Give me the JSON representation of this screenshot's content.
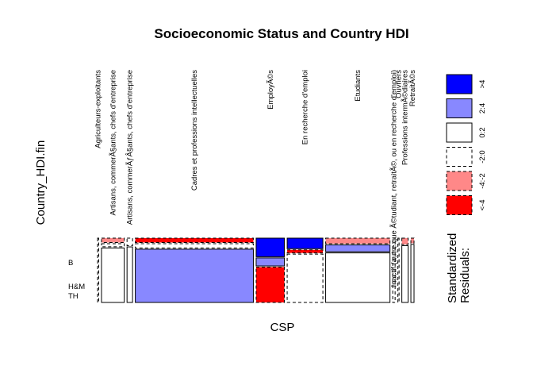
{
  "chart_data": {
    "type": "mosaic",
    "title": "Socioeconomic Status and Country HDI",
    "xlabel": "CSP",
    "ylabel": "Country_HDI.fin",
    "row_levels": [
      "B",
      "H&M",
      "TH"
    ],
    "categories": [
      {
        "label": "Agriculteurs-exploitants",
        "width": 0.003,
        "cells": [
          {
            "fraction": 1.0,
            "fill": "#ffffff",
            "dashed": true
          }
        ]
      },
      {
        "label": "Artisans, commerÃ§ants, chefs d'entreprise",
        "width": 0.058,
        "cells": [
          {
            "fraction": 0.07,
            "fill": "#ff8888",
            "dashed": true
          },
          {
            "fraction": 0.05,
            "fill": "#ffffff",
            "dashed": true
          },
          {
            "fraction": 0.88,
            "fill": "#ffffff",
            "dashed": false
          }
        ]
      },
      {
        "label": "Artisans, commerÃƒÂ§ants, chefs d'entreprise",
        "width": 0.014,
        "cells": [
          {
            "fraction": 0.12,
            "fill": "#ffffff",
            "dashed": true
          },
          {
            "fraction": 0.88,
            "fill": "#ffffff",
            "dashed": false
          }
        ]
      },
      {
        "label": "Cadres et professions intellectuelles",
        "width": 0.301,
        "cells": [
          {
            "fraction": 0.07,
            "fill": "#ff0000",
            "dashed": true
          },
          {
            "fraction": 0.07,
            "fill": "#ffffff",
            "dashed": true
          },
          {
            "fraction": 0.86,
            "fill": "#8888ff",
            "dashed": false
          }
        ]
      },
      {
        "label": "EmployÃ©s",
        "width": 0.072,
        "cells": [
          {
            "fraction": 0.3,
            "fill": "#0000ff",
            "dashed": false
          },
          {
            "fraction": 0.13,
            "fill": "#8888ff",
            "dashed": false
          },
          {
            "fraction": 0.57,
            "fill": "#ff0000",
            "dashed": true
          }
        ]
      },
      {
        "label": "En recherche d'emploi",
        "width": 0.091,
        "cells": [
          {
            "fraction": 0.17,
            "fill": "#0000ff",
            "dashed": false
          },
          {
            "fraction": 0.05,
            "fill": "#ff0000",
            "dashed": true
          },
          {
            "fraction": 0.78,
            "fill": "#ffffff",
            "dashed": true
          }
        ]
      },
      {
        "label": "Etudiants",
        "width": 0.164,
        "cells": [
          {
            "fraction": 0.09,
            "fill": "#ff8888",
            "dashed": true
          },
          {
            "fraction": 0.11,
            "fill": "#8888ff",
            "dashed": false
          },
          {
            "fraction": 0.8,
            "fill": "#ffffff",
            "dashed": false
          }
        ]
      },
      {
        "label": "Inactif (autre que Ã©tudiant, retraitÃ©, ou en recherche d'emploi)",
        "width": 0.006,
        "cells": [
          {
            "fraction": 1.0,
            "fill": "#ffffff",
            "dashed": true
          }
        ]
      },
      {
        "label": "Ouvriers",
        "width": 0.003,
        "cells": [
          {
            "fraction": 1.0,
            "fill": "#ffffff",
            "dashed": true
          }
        ]
      },
      {
        "label": "Professions intermÃ©diaires",
        "width": 0.016,
        "cells": [
          {
            "fraction": 0.1,
            "fill": "#ff8888",
            "dashed": true
          },
          {
            "fraction": 0.9,
            "fill": "#ffffff",
            "dashed": false
          }
        ]
      },
      {
        "label": "RetraitÃ©s",
        "width": 0.008,
        "cells": [
          {
            "fraction": 0.08,
            "fill": "#ff8888",
            "dashed": true
          },
          {
            "fraction": 0.92,
            "fill": "#ffffff",
            "dashed": false
          }
        ]
      }
    ],
    "legend": {
      "title_lines": [
        "Standardized",
        "Residuals:"
      ],
      "entries": [
        {
          "label": ">4",
          "fill": "#0000ff",
          "dashed": false
        },
        {
          "label": "2:4",
          "fill": "#8888ff",
          "dashed": false
        },
        {
          "label": "0:2",
          "fill": "#ffffff",
          "dashed": false
        },
        {
          "label": "-2:0",
          "fill": "#ffffff",
          "dashed": true
        },
        {
          "label": "-4:-2",
          "fill": "#ff8888",
          "dashed": true
        },
        {
          "label": "<-4",
          "fill": "#ff0000",
          "dashed": true
        }
      ]
    }
  }
}
